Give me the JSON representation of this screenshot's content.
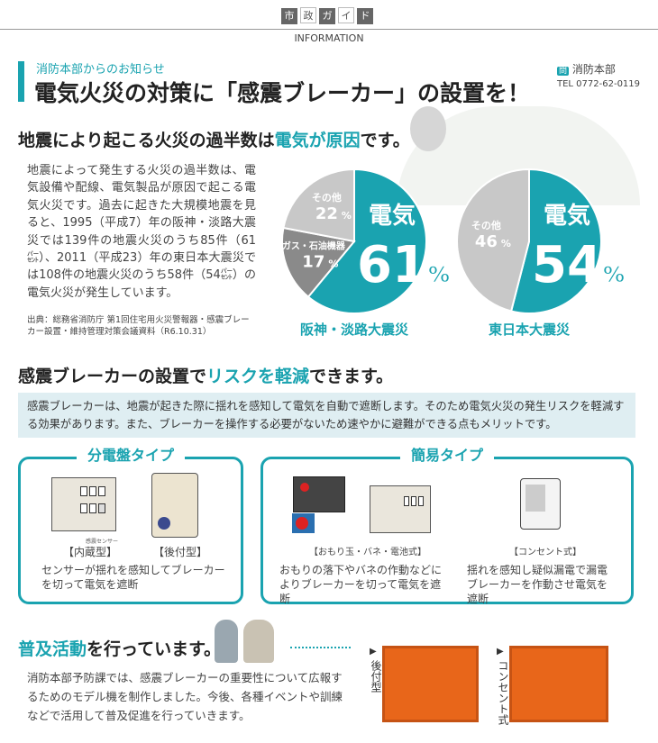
{
  "header": {
    "tag_chars": [
      "市",
      "政",
      "ガ",
      "イ",
      "ド"
    ],
    "section": "INFORMATION"
  },
  "article": {
    "kicker": "消防本部からのお知らせ",
    "title": "電気火災の対策に「感震ブレーカー」の設置を！",
    "contact": {
      "badge": "問",
      "dept": "消防本部",
      "tel": "TEL 0772-62-0119"
    }
  },
  "section1": {
    "heading_pre": "地震により起こる火災の過半数は",
    "heading_hl": "電気が原因",
    "heading_post": "です。",
    "body": "地震によって発生する火災の過半数は、電気設備や配線、電気製品が原因で起こる電気火災です。過去に起きた大規模地震を見ると、1995（平成7）年の阪神・淡路大震災では139件の地震火災のうち85件（61㌫）、2011（平成23）年の東日本大震災では108件の地震火災のうち58件（54㌫）の電気火災が発生しています。",
    "source": "出典：総務省消防庁 第1回住宅用火災警報器・感震ブレーカー設置・維持管理対策会議資料（R6.10.31）"
  },
  "chart_data": [
    {
      "type": "pie",
      "title": "阪神・淡路大震災",
      "slices": [
        {
          "label": "電気",
          "value": 61
        },
        {
          "label": "ガス・石油機器",
          "value": 17
        },
        {
          "label": "その他",
          "value": 22
        }
      ],
      "colors": [
        "#1aa3b0",
        "#8a8a8a",
        "#c8c8c8"
      ]
    },
    {
      "type": "pie",
      "title": "東日本大震災",
      "slices": [
        {
          "label": "電気",
          "value": 54
        },
        {
          "label": "その他",
          "value": 46
        }
      ],
      "colors": [
        "#1aa3b0",
        "#c8c8c8"
      ]
    }
  ],
  "section2": {
    "heading_pre": "感震ブレーカーの設置で",
    "heading_hl": "リスクを軽減",
    "heading_post": "できます。",
    "info": "感震ブレーカーは、地震が起きた際に揺れを感知して電気を自動で遮断します。そのため電気火災の発生リスクを軽減する効果があります。また、ブレーカーを操作する必要がないため速やかに避難ができる点もメリットです。",
    "panel1": {
      "title": "分電盤タイプ",
      "sensor_label": "感震センサー",
      "item1": "【内蔵型】",
      "item2": "【後付型】",
      "desc": "センサーが揺れを感知してブレーカーを切って電気を遮断"
    },
    "panel2": {
      "title": "簡易タイプ",
      "item1": "【おもり玉・バネ・電池式】",
      "desc1": "おもりの落下やバネの作動などによりブレーカーを切って電気を遮断",
      "item2": "【コンセント式】",
      "desc2": "揺れを感知し疑似漏電で漏電ブレーカーを作動させ電気を遮断"
    }
  },
  "section3": {
    "heading_hl": "普及活動",
    "heading_post": "を行っています。",
    "body": "消防本部予防課では、感震ブレーカーの重要性について広報するためのモデル機を制作しました。今後、各種イベントや訓練などで活用して普及促進を行っていきます。",
    "photo1_label": "後付型",
    "photo2_label": "コンセント式"
  }
}
